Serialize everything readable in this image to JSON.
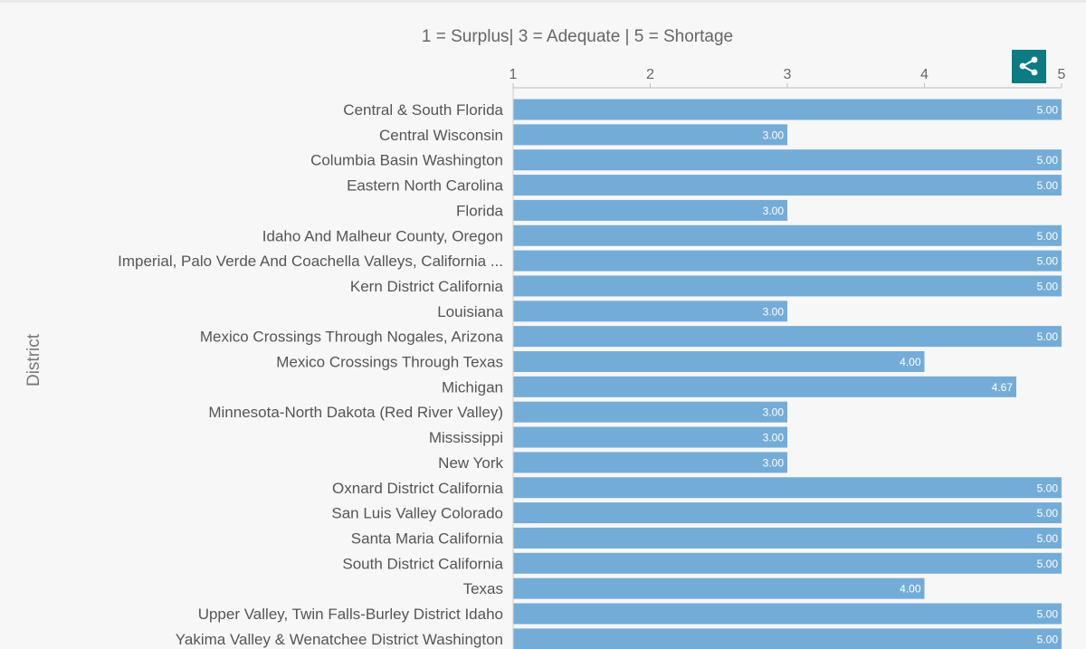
{
  "chart_data": {
    "type": "bar",
    "orientation": "horizontal",
    "title": "1 = Surplus| 3 = Adequate | 5 = Shortage",
    "ylabel": "District",
    "xlabel": "",
    "xlim": [
      1,
      5
    ],
    "x_ticks": [
      "1",
      "2",
      "3",
      "4",
      "5"
    ],
    "x_axis_position": "top",
    "grid": false,
    "bar_color": "#74acd8",
    "categories": [
      "Central & South Florida",
      "Central Wisconsin",
      "Columbia Basin Washington",
      "Eastern North Carolina",
      "Florida",
      "Idaho And Malheur County, Oregon",
      "Imperial, Palo Verde And Coachella Valleys, California ...",
      "Kern District California",
      "Louisiana",
      "Mexico Crossings Through Nogales, Arizona",
      "Mexico Crossings Through Texas",
      "Michigan",
      "Minnesota-North Dakota (Red River Valley)",
      "Mississippi",
      "New York",
      "Oxnard District California",
      "San Luis Valley Colorado",
      "Santa Maria California",
      "South District California",
      "Texas",
      "Upper Valley, Twin Falls-Burley District Idaho",
      "Yakima Valley & Wenatchee District Washington"
    ],
    "values": [
      5,
      3,
      5,
      5,
      3,
      5,
      5,
      5,
      3,
      5,
      4,
      4.67,
      3,
      3,
      3,
      5,
      5,
      5,
      5,
      4,
      5,
      5
    ],
    "value_labels": [
      "5.00",
      "3.00",
      "5.00",
      "5.00",
      "3.00",
      "5.00",
      "5.00",
      "5.00",
      "3.00",
      "5.00",
      "4.00",
      "4.67",
      "3.00",
      "3.00",
      "3.00",
      "5.00",
      "5.00",
      "5.00",
      "5.00",
      "4.00",
      "5.00",
      "5.00"
    ]
  },
  "toolbar": {
    "share_icon": "share-icon",
    "accent_color": "#0e7b82"
  }
}
